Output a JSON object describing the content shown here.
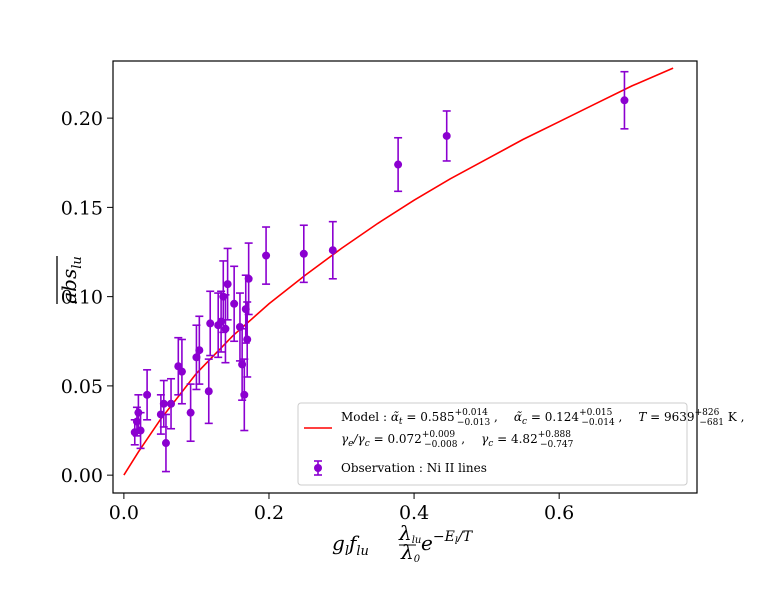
{
  "chart_data": {
    "type": "scatter",
    "title": "",
    "xlabel": "g_l f_lu (λ_lu/λ_0) e^(−E_l/T)",
    "xlabel_parts": {
      "g": "g",
      "gsub": "l",
      "f": "f",
      "fsub": "lu",
      "frac_num": "λ",
      "frac_num_sub": "lu",
      "frac_den": "λ",
      "frac_den_sub": "0",
      "e": "e",
      "exp": "−E",
      "exp_sub": "l",
      "exp_tail": "/T"
    },
    "ylabel": "abs_lu (mean)",
    "ylabel_parts": {
      "main": "abs",
      "sub": "lu"
    },
    "xlim": [
      -0.015,
      0.79
    ],
    "ylim": [
      -0.01,
      0.232
    ],
    "xticks": [
      0.0,
      0.2,
      0.4,
      0.6
    ],
    "xtick_labels": [
      "0.0",
      "0.2",
      "0.4",
      "0.6"
    ],
    "yticks": [
      0.0,
      0.05,
      0.1,
      0.15,
      0.2
    ],
    "ytick_labels": [
      "0.00",
      "0.05",
      "0.10",
      "0.15",
      "0.20"
    ],
    "grid": false,
    "legend_position": "lower-right",
    "series": [
      {
        "name": "Observation : Ni II lines",
        "kind": "errorbar",
        "color": "#8b00d0",
        "points": [
          {
            "x": 0.015,
            "y": 0.024,
            "err": 0.007
          },
          {
            "x": 0.018,
            "y": 0.03,
            "err": 0.008
          },
          {
            "x": 0.02,
            "y": 0.035,
            "err": 0.01
          },
          {
            "x": 0.023,
            "y": 0.025,
            "err": 0.01
          },
          {
            "x": 0.032,
            "y": 0.045,
            "err": 0.014
          },
          {
            "x": 0.051,
            "y": 0.034,
            "err": 0.011
          },
          {
            "x": 0.055,
            "y": 0.04,
            "err": 0.013
          },
          {
            "x": 0.058,
            "y": 0.018,
            "err": 0.016
          },
          {
            "x": 0.065,
            "y": 0.04,
            "err": 0.014
          },
          {
            "x": 0.075,
            "y": 0.061,
            "err": 0.016
          },
          {
            "x": 0.08,
            "y": 0.058,
            "err": 0.018
          },
          {
            "x": 0.092,
            "y": 0.035,
            "err": 0.016
          },
          {
            "x": 0.1,
            "y": 0.066,
            "err": 0.018
          },
          {
            "x": 0.104,
            "y": 0.07,
            "err": 0.019
          },
          {
            "x": 0.117,
            "y": 0.047,
            "err": 0.018
          },
          {
            "x": 0.119,
            "y": 0.085,
            "err": 0.018
          },
          {
            "x": 0.13,
            "y": 0.084,
            "err": 0.018
          },
          {
            "x": 0.134,
            "y": 0.086,
            "err": 0.017
          },
          {
            "x": 0.137,
            "y": 0.1,
            "err": 0.02
          },
          {
            "x": 0.14,
            "y": 0.082,
            "err": 0.019
          },
          {
            "x": 0.143,
            "y": 0.107,
            "err": 0.02
          },
          {
            "x": 0.152,
            "y": 0.096,
            "err": 0.021
          },
          {
            "x": 0.16,
            "y": 0.083,
            "err": 0.019
          },
          {
            "x": 0.163,
            "y": 0.062,
            "err": 0.02
          },
          {
            "x": 0.166,
            "y": 0.045,
            "err": 0.02
          },
          {
            "x": 0.168,
            "y": 0.093,
            "err": 0.019
          },
          {
            "x": 0.17,
            "y": 0.076,
            "err": 0.021
          },
          {
            "x": 0.172,
            "y": 0.11,
            "err": 0.02
          },
          {
            "x": 0.196,
            "y": 0.123,
            "err": 0.016
          },
          {
            "x": 0.248,
            "y": 0.124,
            "err": 0.016
          },
          {
            "x": 0.288,
            "y": 0.126,
            "err": 0.016
          },
          {
            "x": 0.378,
            "y": 0.174,
            "err": 0.015
          },
          {
            "x": 0.445,
            "y": 0.19,
            "err": 0.014
          },
          {
            "x": 0.69,
            "y": 0.21,
            "err": 0.016
          }
        ]
      },
      {
        "name": "Model",
        "kind": "line",
        "color": "#ff0000",
        "x": [
          0.0,
          0.02,
          0.05,
          0.1,
          0.15,
          0.2,
          0.25,
          0.3,
          0.35,
          0.4,
          0.45,
          0.5,
          0.55,
          0.6,
          0.65,
          0.7,
          0.757
        ],
        "y": [
          0.0,
          0.013,
          0.031,
          0.057,
          0.078,
          0.096,
          0.112,
          0.127,
          0.141,
          0.154,
          0.166,
          0.177,
          0.188,
          0.198,
          0.208,
          0.218,
          0.228
        ]
      }
    ],
    "legend": {
      "model_line1_prefix": "Model : ",
      "alpha_t_sym": "α̃",
      "alpha_t_sub": "t",
      "alpha_t_val": " = 0.585",
      "alpha_t_sup": "+0.014",
      "alpha_t_lo": "−0.013",
      "alpha_c_sym": "α̃",
      "alpha_c_sub": "c",
      "alpha_c_val": " = 0.124",
      "alpha_c_sup": "+0.015",
      "alpha_c_lo": "−0.014",
      "T_sym": "T",
      "T_val": " = 9639",
      "T_sup": "+826",
      "T_lo": "−681",
      "T_unit": " K ,",
      "gamma_ratio_sym": "γ",
      "gamma_ratio_sub1": "e",
      "gamma_ratio_slash": "/γ",
      "gamma_ratio_sub2": "c",
      "gamma_ratio_val": " = 0.072",
      "gamma_ratio_sup": "+0.009",
      "gamma_ratio_lo": "−0.008",
      "gamma_c_sym": "γ",
      "gamma_c_sub": "c",
      "gamma_c_val": " = 4.82",
      "gamma_c_sup": "+0.888",
      "gamma_c_lo": "−0.747",
      "sep": " ,",
      "observation_label": "Observation : Ni II lines"
    }
  }
}
